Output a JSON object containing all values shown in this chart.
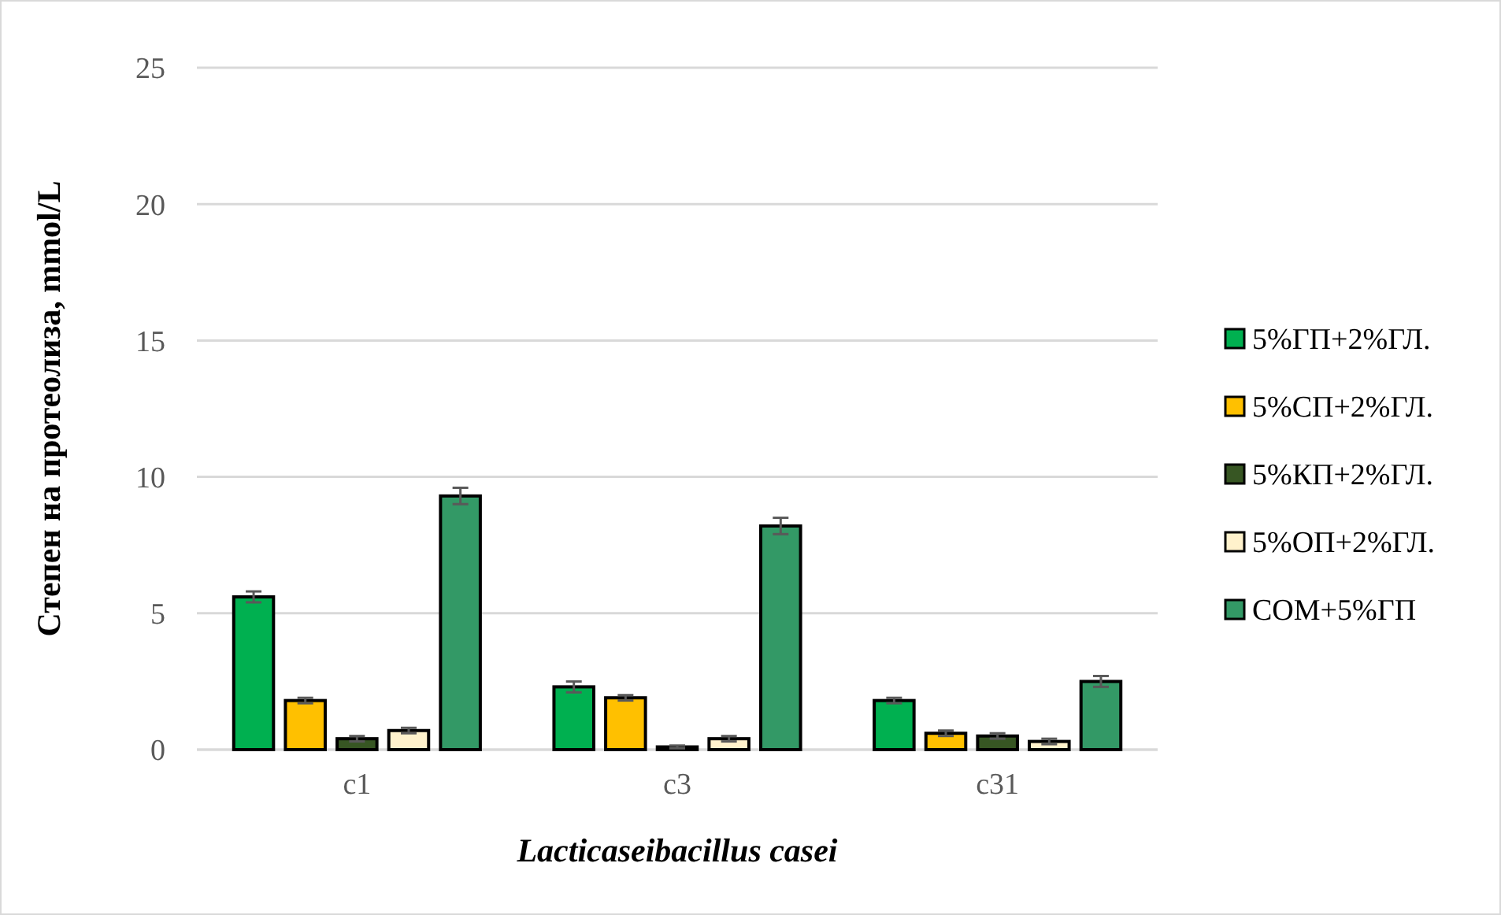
{
  "chart_data": {
    "type": "bar",
    "xlabel": "Lacticaseibacillus casei",
    "ylabel": "Степен на протеолиза, mmol/L",
    "categories": [
      "c1",
      "c3",
      "c31"
    ],
    "series": [
      {
        "name": "5%ГП+2%ГЛ.",
        "color": "#00b050",
        "values": [
          5.6,
          2.3,
          1.8
        ],
        "errors": [
          0.2,
          0.2,
          0.1
        ]
      },
      {
        "name": "5%СП+2%ГЛ.",
        "color": "#ffc000",
        "values": [
          1.8,
          1.9,
          0.6
        ],
        "errors": [
          0.1,
          0.1,
          0.1
        ]
      },
      {
        "name": "5%КП+2%ГЛ.",
        "color": "#375623",
        "values": [
          0.4,
          0.1,
          0.5
        ],
        "errors": [
          0.1,
          0.05,
          0.1
        ]
      },
      {
        "name": "5%ОП+2%ГЛ.",
        "color": "#fff2cc",
        "values": [
          0.7,
          0.4,
          0.3
        ],
        "errors": [
          0.1,
          0.1,
          0.1
        ]
      },
      {
        "name": "СОМ+5%ГП",
        "color": "#339966",
        "values": [
          9.3,
          8.2,
          2.5
        ],
        "errors": [
          0.3,
          0.3,
          0.2
        ]
      }
    ],
    "ylim": [
      0,
      25
    ],
    "yticks": [
      0,
      5,
      10,
      15,
      20,
      25
    ],
    "grid": "y",
    "legend": "right"
  }
}
